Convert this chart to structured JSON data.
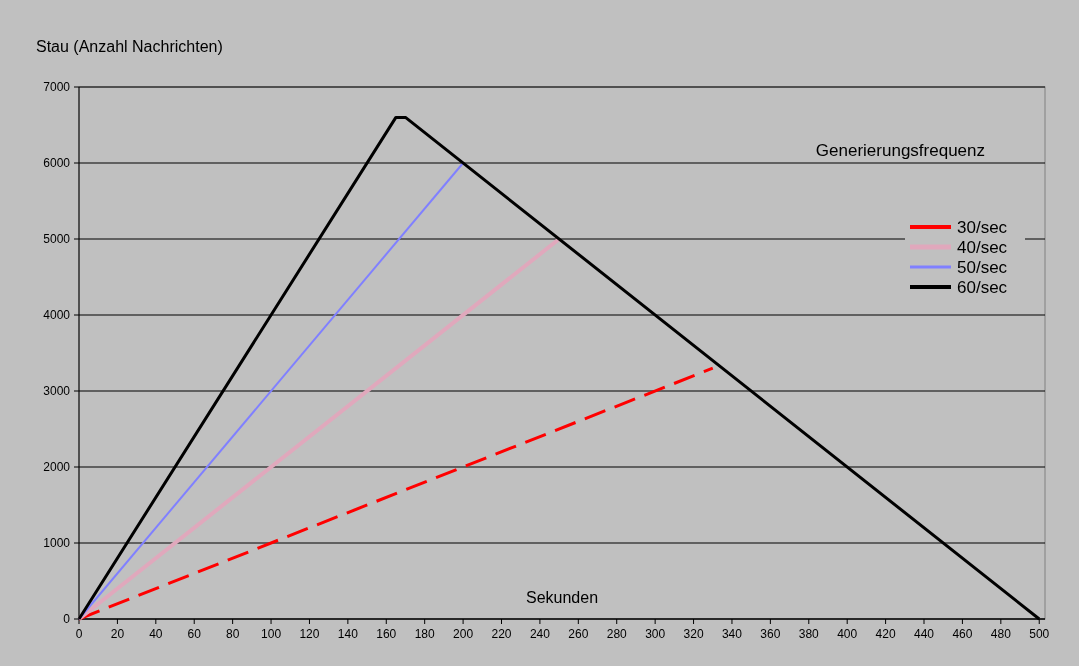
{
  "chart_data": {
    "type": "line",
    "ylabel": "Stau (Anzahl Nachrichten)",
    "xlabel": "Sekunden",
    "legend_title": "Generierungsfrequenz",
    "legend": "top right",
    "grid": "y",
    "xlim": [
      0,
      503
    ],
    "xticks": [
      0,
      20,
      40,
      60,
      80,
      100,
      120,
      140,
      160,
      180,
      200,
      220,
      240,
      260,
      280,
      300,
      320,
      340,
      360,
      380,
      400,
      420,
      440,
      460,
      480,
      500
    ],
    "ylim": [
      0,
      7000
    ],
    "yticks": [
      0,
      1000,
      2000,
      3000,
      4000,
      5000,
      6000,
      7000
    ],
    "series": [
      {
        "name": "30/sec",
        "color": "#ff0000",
        "line_style": "dashed",
        "x": [
          0,
          330
        ],
        "values": [
          0,
          3300
        ]
      },
      {
        "name": "40/sec",
        "color": "#e0a8bc",
        "x": [
          0,
          250
        ],
        "values": [
          0,
          5000
        ]
      },
      {
        "name": "50/sec",
        "color": "#8080ff",
        "x": [
          0,
          200
        ],
        "values": [
          0,
          6000
        ]
      },
      {
        "name": "60/sec",
        "color": "#000000",
        "x": [
          0,
          165,
          170,
          500
        ],
        "values": [
          0,
          6600,
          6600,
          0
        ]
      }
    ]
  }
}
